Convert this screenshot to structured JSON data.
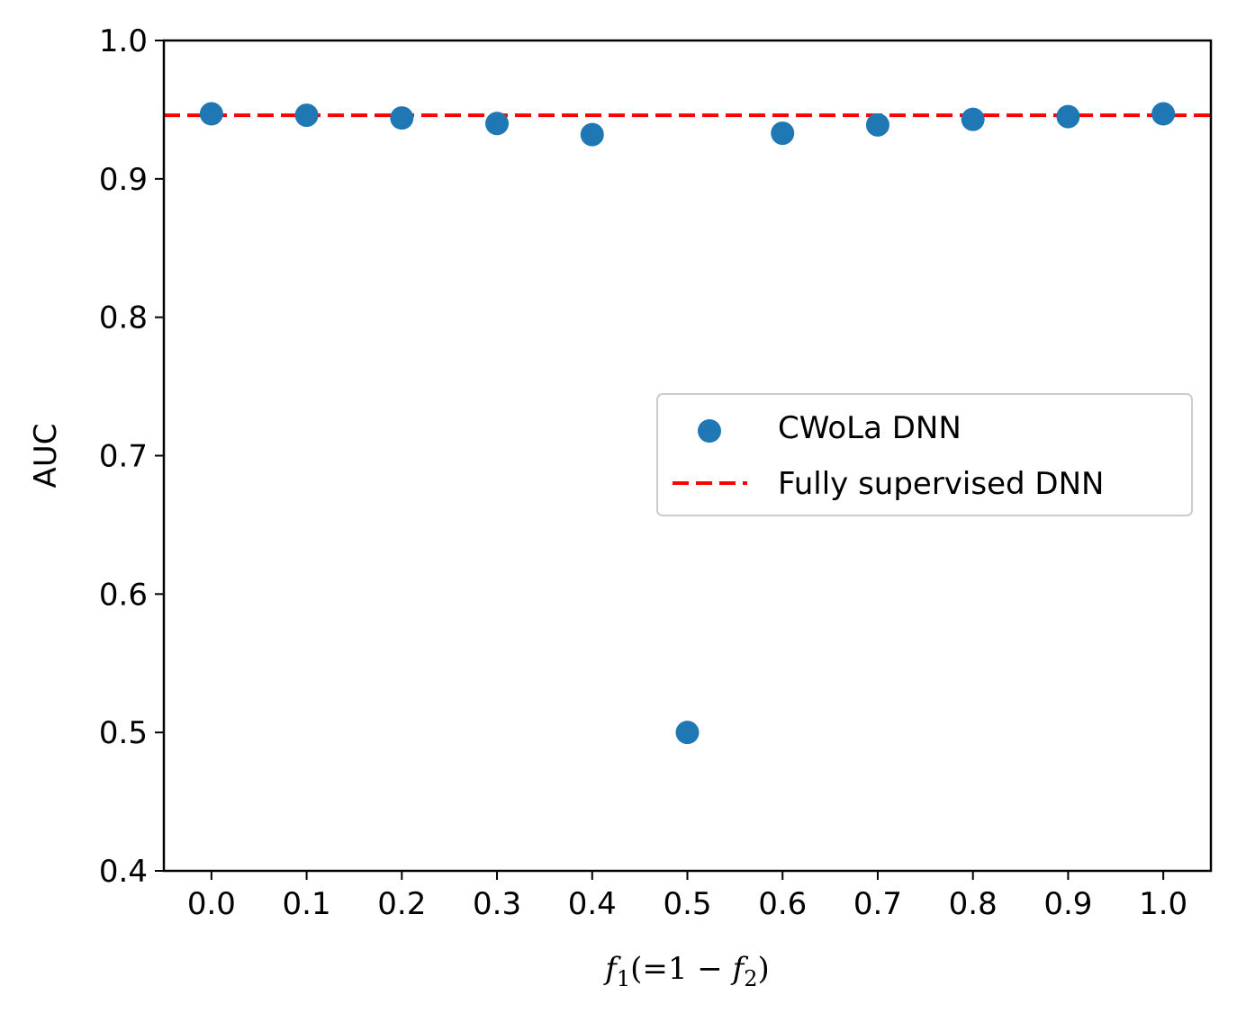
{
  "chart_data": {
    "type": "scatter",
    "xlabel": "f_1(=1-f_2)",
    "ylabel": "AUC",
    "xlim": [
      -0.05,
      1.05
    ],
    "ylim": [
      0.4,
      1.0
    ],
    "x_ticks": [
      "0.0",
      "0.1",
      "0.2",
      "0.3",
      "0.4",
      "0.5",
      "0.6",
      "0.7",
      "0.8",
      "0.9",
      "1.0"
    ],
    "y_ticks": [
      "0.4",
      "0.5",
      "0.6",
      "0.7",
      "0.8",
      "0.9",
      "1.0"
    ],
    "grid": false,
    "legend_position": "center-right",
    "series": [
      {
        "name": "CWoLa DNN",
        "kind": "scatter",
        "color": "#1f77b4",
        "x": [
          0.0,
          0.1,
          0.2,
          0.3,
          0.4,
          0.5,
          0.6,
          0.7,
          0.8,
          0.9,
          1.0
        ],
        "y": [
          0.947,
          0.946,
          0.944,
          0.94,
          0.932,
          0.5,
          0.933,
          0.939,
          0.943,
          0.945,
          0.947
        ]
      },
      {
        "name": "Fully supervised DNN",
        "kind": "hline",
        "color": "#ff0000",
        "linestyle": "dashed",
        "y": 0.946
      }
    ]
  }
}
